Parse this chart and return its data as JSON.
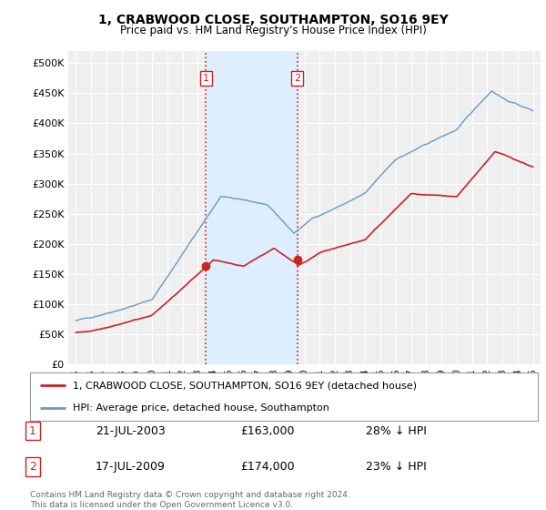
{
  "title": "1, CRABWOOD CLOSE, SOUTHAMPTON, SO16 9EY",
  "subtitle": "Price paid vs. HM Land Registry's House Price Index (HPI)",
  "ylim": [
    0,
    520000
  ],
  "yticks": [
    0,
    50000,
    100000,
    150000,
    200000,
    250000,
    300000,
    350000,
    400000,
    450000,
    500000
  ],
  "ytick_labels": [
    "£0",
    "£50K",
    "£100K",
    "£150K",
    "£200K",
    "£250K",
    "£300K",
    "£350K",
    "£400K",
    "£450K",
    "£500K"
  ],
  "hpi_color": "#6699cc",
  "price_color": "#cc2222",
  "sale1_date": 2003.54,
  "sale1_price": 163000,
  "sale2_date": 2009.54,
  "sale2_price": 174000,
  "shade_color": "#ddeeff",
  "vline_color": "#cc2222",
  "legend_line1": "1, CRABWOOD CLOSE, SOUTHAMPTON, SO16 9EY (detached house)",
  "legend_line2": "HPI: Average price, detached house, Southampton",
  "table_row1": [
    "1",
    "21-JUL-2003",
    "£163,000",
    "28% ↓ HPI"
  ],
  "table_row2": [
    "2",
    "17-JUL-2009",
    "£174,000",
    "23% ↓ HPI"
  ],
  "footer": "Contains HM Land Registry data © Crown copyright and database right 2024.\nThis data is licensed under the Open Government Licence v3.0.",
  "bg_color": "#ffffff",
  "plot_bg_color": "#efefef",
  "grid_color": "#ffffff"
}
